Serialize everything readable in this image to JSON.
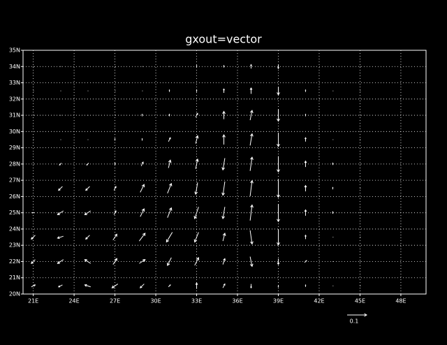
{
  "chart_data": {
    "type": "vector",
    "title": "gxout=vector",
    "xlim": [
      20.25,
      49.85
    ],
    "ylim": [
      20,
      35
    ],
    "xticks": [
      {
        "value": 21,
        "label": "21E"
      },
      {
        "value": 24,
        "label": "24E"
      },
      {
        "value": 27,
        "label": "27E"
      },
      {
        "value": 30,
        "label": "30E"
      },
      {
        "value": 33,
        "label": "33E"
      },
      {
        "value": 36,
        "label": "36E"
      },
      {
        "value": 39,
        "label": "39E"
      },
      {
        "value": 42,
        "label": "42E"
      },
      {
        "value": 45,
        "label": "45E"
      },
      {
        "value": 48,
        "label": "48E"
      }
    ],
    "yticks": [
      {
        "value": 20,
        "label": "20N"
      },
      {
        "value": 21,
        "label": "21N"
      },
      {
        "value": 22,
        "label": "22N"
      },
      {
        "value": 23,
        "label": "23N"
      },
      {
        "value": 24,
        "label": "24N"
      },
      {
        "value": 25,
        "label": "25N"
      },
      {
        "value": 26,
        "label": "26N"
      },
      {
        "value": 27,
        "label": "27N"
      },
      {
        "value": 28,
        "label": "28N"
      },
      {
        "value": 29,
        "label": "29N"
      },
      {
        "value": 30,
        "label": "30N"
      },
      {
        "value": 31,
        "label": "31N"
      },
      {
        "value": 32,
        "label": "32N"
      },
      {
        "value": 33,
        "label": "33N"
      },
      {
        "value": 34,
        "label": "34N"
      },
      {
        "value": 35,
        "label": "35N"
      }
    ],
    "grid": true,
    "color": "#ffffff",
    "ref_vector": 0.1,
    "lon": [
      21,
      23,
      25,
      27,
      29,
      31,
      33,
      35,
      37,
      39,
      41,
      43,
      45
    ],
    "lat": [
      20.5,
      22,
      23.5,
      25,
      26.5,
      28,
      29.5,
      31,
      32.5,
      34
    ],
    "u": [
      [
        0.02,
        -0.02,
        -0.03,
        -0.03,
        -0.02,
        0.01,
        0,
        0.01,
        0,
        0,
        0,
        0,
        0
      ],
      [
        -0.02,
        -0.03,
        -0.03,
        0.02,
        0.03,
        -0.02,
        0.02,
        0.01,
        0.01,
        0,
        0.01,
        0,
        0
      ],
      [
        -0.02,
        -0.03,
        -0.02,
        0.02,
        0.03,
        -0.03,
        -0.02,
        0.01,
        0.01,
        0,
        0,
        0,
        0
      ],
      [
        -0.01,
        -0.03,
        -0.03,
        0.01,
        0.02,
        0.02,
        -0.02,
        -0.01,
        0.01,
        0,
        0,
        0,
        0
      ],
      [
        0,
        -0.02,
        -0.02,
        0.01,
        0.02,
        0.02,
        -0.01,
        -0.01,
        0.01,
        0,
        0,
        0,
        0
      ],
      [
        0,
        -0.01,
        -0.01,
        0,
        0.01,
        0.01,
        0.01,
        -0.01,
        0.01,
        0,
        0,
        0,
        0
      ],
      [
        0,
        0,
        0,
        0,
        0,
        0.01,
        0.01,
        0,
        0.01,
        0,
        0,
        0,
        0
      ],
      [
        0,
        0,
        0,
        0,
        0,
        0,
        0.01,
        0,
        0.01,
        0,
        0,
        0,
        0
      ],
      [
        0,
        0,
        0,
        0,
        0,
        0,
        0,
        0,
        0,
        0,
        0,
        0,
        0
      ],
      [
        0,
        0,
        0,
        0,
        0,
        0,
        0,
        0,
        0,
        0,
        0,
        0,
        0
      ]
    ],
    "v": [
      [
        0.01,
        -0.01,
        0.01,
        -0.02,
        -0.02,
        0.01,
        0.03,
        0.02,
        -0.02,
        -0.01,
        0.01,
        0,
        0
      ],
      [
        -0.02,
        -0.02,
        0.02,
        0.03,
        0.02,
        -0.04,
        0.04,
        0.03,
        -0.05,
        -0.03,
        0.01,
        0,
        0
      ],
      [
        -0.02,
        -0.01,
        -0.02,
        0.03,
        0.04,
        -0.05,
        -0.05,
        0.04,
        -0.07,
        -0.08,
        0.02,
        0,
        0
      ],
      [
        0,
        -0.02,
        -0.02,
        0.02,
        0.04,
        0.05,
        -0.06,
        -0.06,
        0.08,
        -0.09,
        0.03,
        0.01,
        0
      ],
      [
        0,
        -0.02,
        -0.02,
        0.02,
        0.04,
        0.05,
        -0.06,
        -0.07,
        0.08,
        -0.09,
        0.03,
        0.01,
        0
      ],
      [
        0,
        -0.01,
        -0.01,
        0.01,
        0.02,
        0.04,
        0.05,
        -0.06,
        0.07,
        -0.08,
        0.03,
        0.01,
        0
      ],
      [
        0,
        0,
        0,
        0.01,
        0.01,
        0.02,
        0.04,
        0.05,
        0.06,
        -0.07,
        0.02,
        0,
        0
      ],
      [
        0,
        0,
        0,
        0,
        0.01,
        0.01,
        0.02,
        0.04,
        0.05,
        -0.06,
        0.01,
        0,
        0
      ],
      [
        0,
        0,
        0,
        0,
        0,
        0.01,
        0.01,
        0.02,
        0.03,
        -0.04,
        0.01,
        0,
        0
      ],
      [
        0,
        0,
        0,
        0,
        0,
        0,
        0.01,
        0.01,
        0.02,
        -0.02,
        0,
        0,
        0
      ]
    ]
  }
}
